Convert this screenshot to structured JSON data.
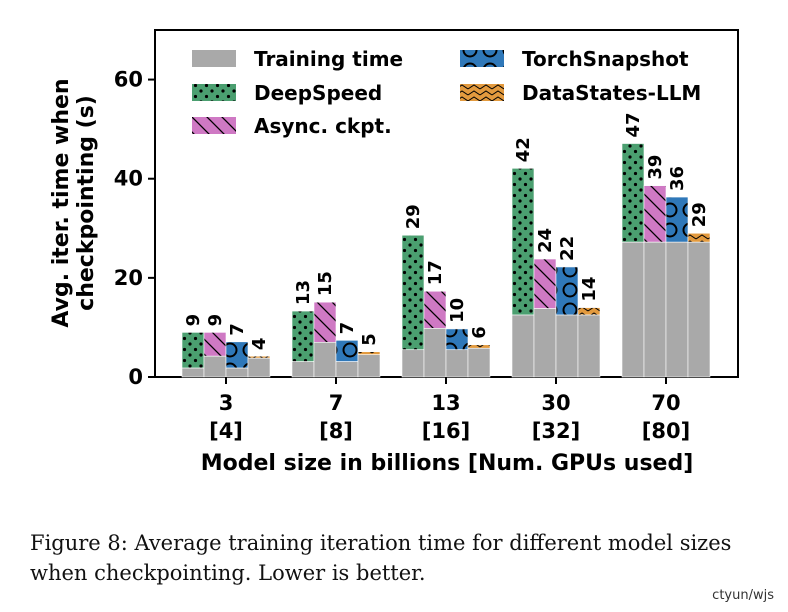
{
  "chart_data": {
    "type": "bar",
    "ylabel_lines": [
      "Avg. iter. time when",
      "checkpointing (s)"
    ],
    "xlabel": "Model size in billions [Num. GPUs used]",
    "ylim": [
      0,
      70
    ],
    "yticks": [
      "0",
      "20",
      "40",
      "60"
    ],
    "categories": [
      {
        "model": "3",
        "gpus": "[4]"
      },
      {
        "model": "7",
        "gpus": "[8]"
      },
      {
        "model": "13",
        "gpus": "[16]"
      },
      {
        "model": "30",
        "gpus": "[32]"
      },
      {
        "model": "70",
        "gpus": "[80]"
      }
    ],
    "training_time": [
      {
        "name": "DeepSpeed",
        "values": [
          1.8,
          3.1,
          5.5,
          12.5,
          27.2
        ]
      },
      {
        "name": "Async. ckpt.",
        "values": [
          4.2,
          7.0,
          9.8,
          13.8,
          27.2
        ]
      },
      {
        "name": "TorchSnapshot",
        "values": [
          1.8,
          3.1,
          5.5,
          12.5,
          27.2
        ]
      },
      {
        "name": "DataStates-LLM",
        "values": [
          3.8,
          4.5,
          5.8,
          12.5,
          27.2
        ]
      }
    ],
    "series": [
      {
        "name": "DeepSpeed",
        "values": [
          9,
          13.3,
          28.6,
          42.1,
          47.1
        ],
        "labels": [
          "9",
          "13",
          "29",
          "42",
          "47"
        ],
        "color": "#4b9f70",
        "pattern": "dots"
      },
      {
        "name": "Async. ckpt.",
        "values": [
          9,
          15.1,
          17.3,
          23.8,
          38.6
        ],
        "labels": [
          "9",
          "15",
          "17",
          "24",
          "39"
        ],
        "color": "#cf79c4",
        "pattern": "diag"
      },
      {
        "name": "TorchSnapshot",
        "values": [
          7.1,
          7.4,
          9.7,
          22.2,
          36.3
        ],
        "labels": [
          "7",
          "7",
          "10",
          "22",
          "36"
        ],
        "color": "#2f78b9",
        "pattern": "circles"
      },
      {
        "name": "DataStates-LLM",
        "values": [
          4.2,
          5.1,
          6.5,
          14.0,
          29.0
        ],
        "labels": [
          "4",
          "5",
          "6",
          "14",
          "29"
        ],
        "color": "#e39a3e",
        "pattern": "wave"
      }
    ],
    "legend": [
      {
        "label": "Training time",
        "color": "#a9a9a9"
      },
      {
        "label": "TorchSnapshot",
        "color": "#2f78b9"
      },
      {
        "label": "DeepSpeed",
        "color": "#4b9f70"
      },
      {
        "label": "DataStates-LLM",
        "color": "#e39a3e"
      },
      {
        "label": "Async. ckpt.",
        "color": "#cf79c4"
      }
    ]
  },
  "caption": "Figure 8: Average training iteration time for different model sizes when checkpointing. Lower is better.",
  "watermark": "ctyun/wjs"
}
